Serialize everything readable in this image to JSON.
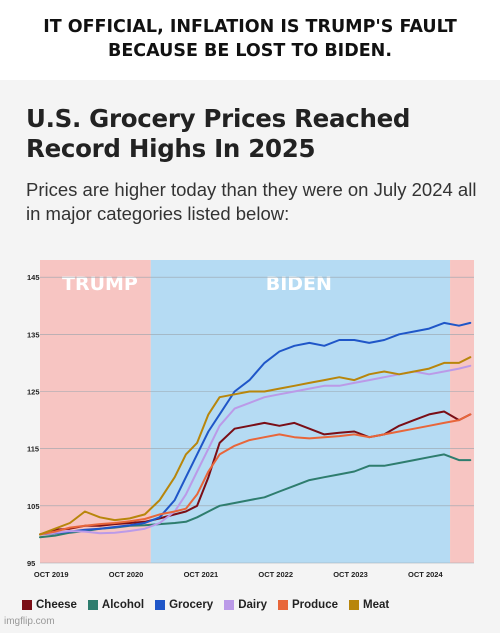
{
  "meme_caption": "IT OFFICIAL, INFLATION IS TRUMP'S FAULT BECAUSE BE LOST TO BIDEN.",
  "watermark": "imgflip.com",
  "chart_data": {
    "type": "line",
    "title": "U.S. Grocery Prices Reached Record Highs In 2025",
    "subtitle": "Prices are higher today than they were on July 2024 all in major categories listed below:",
    "xlabel": "",
    "ylabel": "",
    "ylim": [
      95,
      148
    ],
    "yticks": [
      95,
      105,
      115,
      125,
      135,
      145
    ],
    "xticks": [
      {
        "label": "OCT 2019",
        "value": 2019.75
      },
      {
        "label": "OCT 2020",
        "value": 2020.75
      },
      {
        "label": "OCT 2021",
        "value": 2021.75
      },
      {
        "label": "OCT 2022",
        "value": 2022.75
      },
      {
        "label": "OCT 2023",
        "value": 2023.75
      },
      {
        "label": "OCT 2024",
        "value": 2024.75
      }
    ],
    "xlim": [
      2019.6,
      2025.4
    ],
    "grid": true,
    "periods": [
      {
        "label": "TRUMP",
        "start": 2019.6,
        "end": 2021.08,
        "color": "#f7c5c2"
      },
      {
        "label": "BIDEN",
        "start": 2021.08,
        "end": 2025.08,
        "color": "#b5dbf3"
      },
      {
        "label": "",
        "start": 2025.08,
        "end": 2025.4,
        "color": "#f7c5c2"
      }
    ],
    "legend_position": "bottom",
    "series": [
      {
        "name": "Cheese",
        "color": "#7a0e16",
        "x": [
          2019.6,
          2019.8,
          2020.0,
          2020.2,
          2020.4,
          2020.6,
          2020.8,
          2021.0,
          2021.2,
          2021.4,
          2021.55,
          2021.7,
          2021.85,
          2022.0,
          2022.2,
          2022.4,
          2022.6,
          2022.8,
          2023.0,
          2023.2,
          2023.4,
          2023.6,
          2023.8,
          2024.0,
          2024.2,
          2024.4,
          2024.6,
          2024.8,
          2025.0,
          2025.2,
          2025.35
        ],
        "y": [
          100,
          100.8,
          101,
          101.5,
          101.5,
          101.8,
          102,
          102.2,
          102.8,
          103.5,
          104,
          105,
          110,
          116,
          118.5,
          119,
          119.5,
          119,
          119.5,
          118.5,
          117.5,
          117.8,
          118,
          117,
          117.5,
          119,
          120,
          121,
          121.5,
          120,
          121
        ]
      },
      {
        "name": "Alcohol",
        "color": "#2e7d6e",
        "x": [
          2019.6,
          2019.8,
          2020.0,
          2020.2,
          2020.4,
          2020.6,
          2020.8,
          2021.0,
          2021.2,
          2021.4,
          2021.55,
          2021.7,
          2021.85,
          2022.0,
          2022.2,
          2022.4,
          2022.6,
          2022.8,
          2023.0,
          2023.2,
          2023.4,
          2023.6,
          2023.8,
          2024.0,
          2024.2,
          2024.4,
          2024.6,
          2024.8,
          2025.0,
          2025.2,
          2025.35
        ],
        "y": [
          99.5,
          99.8,
          100.3,
          100.6,
          101,
          101.2,
          101.5,
          101.6,
          101.8,
          102,
          102.2,
          103,
          104,
          105,
          105.5,
          106,
          106.5,
          107.5,
          108.5,
          109.5,
          110,
          110.5,
          111,
          112,
          112,
          112.5,
          113,
          113.5,
          114,
          113,
          113
        ]
      },
      {
        "name": "Grocery",
        "color": "#1f56c8",
        "x": [
          2019.6,
          2019.8,
          2020.0,
          2020.2,
          2020.4,
          2020.6,
          2020.8,
          2021.0,
          2021.2,
          2021.4,
          2021.55,
          2021.7,
          2021.85,
          2022.0,
          2022.2,
          2022.4,
          2022.6,
          2022.8,
          2023.0,
          2023.2,
          2023.4,
          2023.6,
          2023.8,
          2024.0,
          2024.2,
          2024.4,
          2024.6,
          2024.8,
          2025.0,
          2025.2,
          2025.35
        ],
        "y": [
          100,
          100.2,
          100.5,
          100.8,
          101,
          101.3,
          101.6,
          102,
          103,
          106,
          110,
          114,
          118,
          121,
          125,
          127,
          130,
          132,
          133,
          133.5,
          133,
          134,
          134,
          133.5,
          134,
          135,
          135.5,
          136,
          137,
          136.5,
          137
        ]
      },
      {
        "name": "Dairy",
        "color": "#bb9ae8",
        "x": [
          2019.6,
          2019.8,
          2020.0,
          2020.2,
          2020.4,
          2020.6,
          2020.8,
          2021.0,
          2021.2,
          2021.4,
          2021.55,
          2021.7,
          2021.85,
          2022.0,
          2022.2,
          2022.4,
          2022.6,
          2022.8,
          2023.0,
          2023.2,
          2023.4,
          2023.6,
          2023.8,
          2024.0,
          2024.2,
          2024.4,
          2024.6,
          2024.8,
          2025.0,
          2025.2,
          2025.35
        ],
        "y": [
          100,
          100.3,
          100.6,
          100.5,
          100.2,
          100.3,
          100.6,
          101,
          102,
          104,
          107,
          111,
          115,
          119,
          122,
          123,
          124,
          124.5,
          125,
          125.5,
          126,
          126,
          126.5,
          127,
          127.5,
          128,
          128.5,
          128,
          128.5,
          129,
          129.5
        ]
      },
      {
        "name": "Produce",
        "color": "#e8663a",
        "x": [
          2019.6,
          2019.8,
          2020.0,
          2020.2,
          2020.4,
          2020.6,
          2020.8,
          2021.0,
          2021.2,
          2021.4,
          2021.55,
          2021.7,
          2021.85,
          2022.0,
          2022.2,
          2022.4,
          2022.6,
          2022.8,
          2023.0,
          2023.2,
          2023.4,
          2023.6,
          2023.8,
          2024.0,
          2024.2,
          2024.4,
          2024.6,
          2024.8,
          2025.0,
          2025.2,
          2025.35
        ],
        "y": [
          100,
          100.5,
          101.2,
          101.5,
          101.8,
          102,
          102.3,
          102.7,
          103.5,
          104,
          104.5,
          107,
          111,
          114,
          115.5,
          116.5,
          117,
          117.5,
          117,
          116.8,
          117,
          117.2,
          117.5,
          117,
          117.5,
          118,
          118.5,
          119,
          119.5,
          120,
          121
        ]
      },
      {
        "name": "Meat",
        "color": "#b8860b",
        "x": [
          2019.6,
          2019.8,
          2020.0,
          2020.2,
          2020.4,
          2020.6,
          2020.8,
          2021.0,
          2021.2,
          2021.4,
          2021.55,
          2021.7,
          2021.85,
          2022.0,
          2022.2,
          2022.4,
          2022.6,
          2022.8,
          2023.0,
          2023.2,
          2023.4,
          2023.6,
          2023.8,
          2024.0,
          2024.2,
          2024.4,
          2024.6,
          2024.8,
          2025.0,
          2025.2,
          2025.35
        ],
        "y": [
          100,
          101,
          102,
          104,
          103,
          102.5,
          102.8,
          103.5,
          106,
          110,
          114,
          116,
          121,
          124,
          124.5,
          125,
          125,
          125.5,
          126,
          126.5,
          127,
          127.5,
          127,
          128,
          128.5,
          128,
          128.5,
          129,
          130,
          130,
          131
        ]
      }
    ]
  }
}
